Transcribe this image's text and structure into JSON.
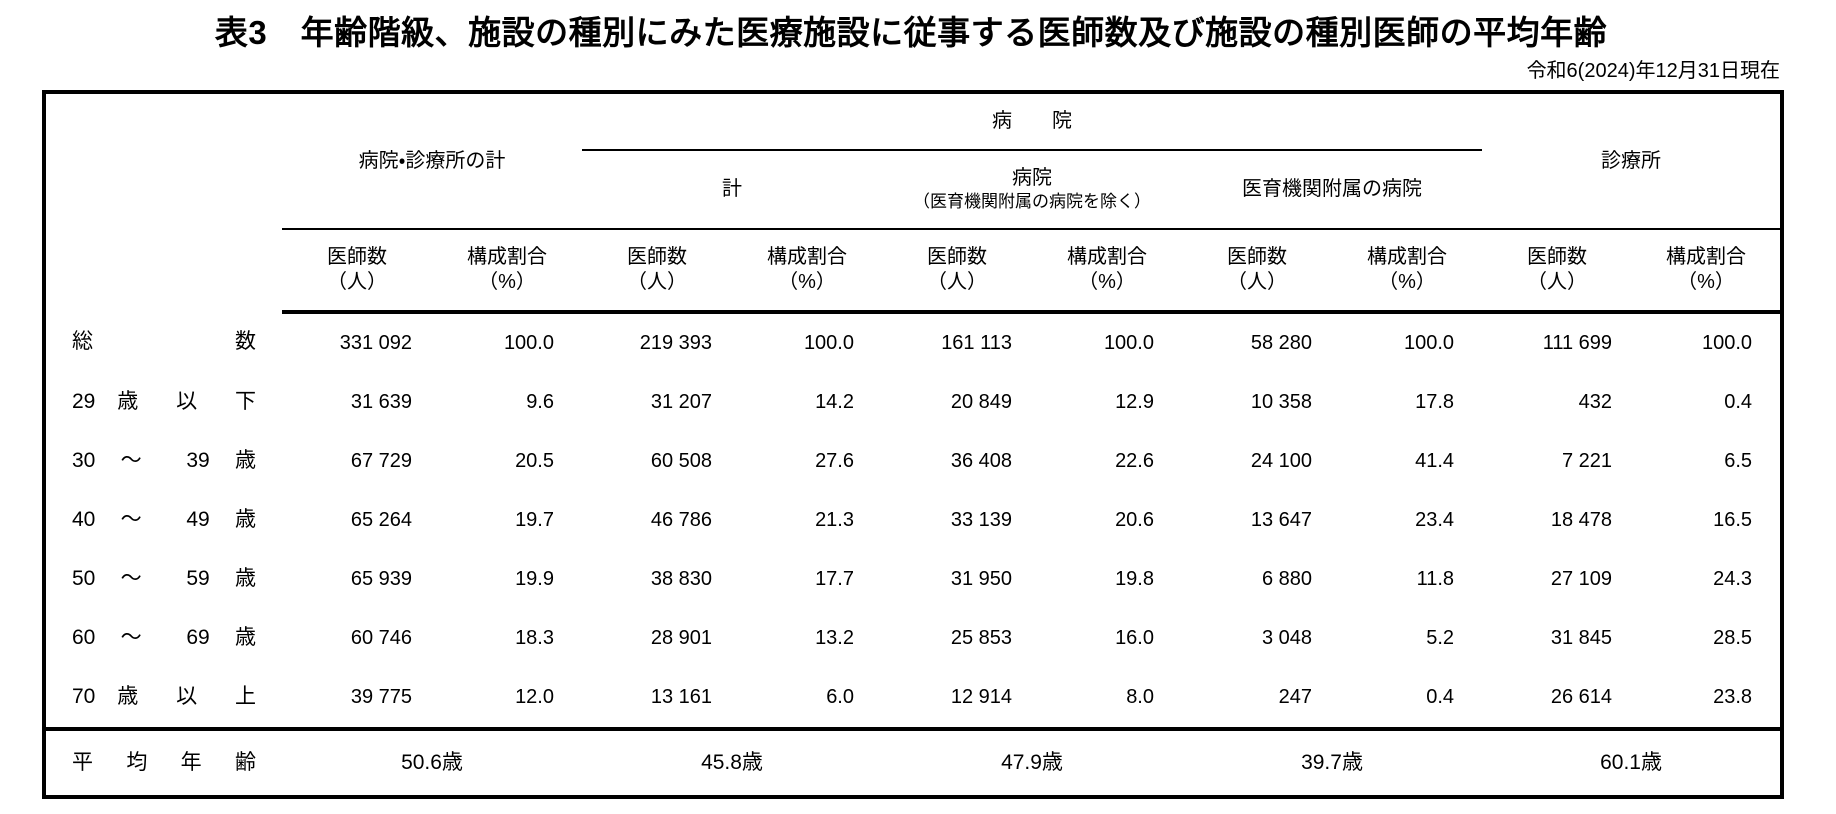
{
  "page": {
    "title": "表3　年齢階級、施設の種別にみた医療施設に従事する医師数及び施設の種別医師の平均年齢",
    "as_of": "令和6(2024)年12月31日現在"
  },
  "header": {
    "hospital_clinic_total": "病院・診療所の計",
    "hospital_group": "病　　院",
    "hospital_total": "計",
    "hospital_excl_line1": "病院",
    "hospital_excl_line2": "（医育機関附属の病院を除く）",
    "medschool_hospital": "医育機関附属の病院",
    "clinic": "診療所",
    "count_line1": "医師数",
    "count_line2": "（人）",
    "share_line1": "構成割合",
    "share_line2": "（%）"
  },
  "rows": [
    {
      "label": "総 数",
      "values": [
        "331 092",
        "100.0",
        "219 393",
        "100.0",
        "161 113",
        "100.0",
        "58 280",
        "100.0",
        "111 699",
        "100.0"
      ]
    },
    {
      "label": "29 歳 以 下",
      "values": [
        "31 639",
        "9.6",
        "31 207",
        "14.2",
        "20 849",
        "12.9",
        "10 358",
        "17.8",
        "432",
        "0.4"
      ]
    },
    {
      "label": "30 〜 39 歳",
      "values": [
        "67 729",
        "20.5",
        "60 508",
        "27.6",
        "36 408",
        "22.6",
        "24 100",
        "41.4",
        "7 221",
        "6.5"
      ]
    },
    {
      "label": "40 〜 49 歳",
      "values": [
        "65 264",
        "19.7",
        "46 786",
        "21.3",
        "33 139",
        "20.6",
        "13 647",
        "23.4",
        "18 478",
        "16.5"
      ]
    },
    {
      "label": "50 〜 59 歳",
      "values": [
        "65 939",
        "19.9",
        "38 830",
        "17.7",
        "31 950",
        "19.8",
        "6 880",
        "11.8",
        "27 109",
        "24.3"
      ]
    },
    {
      "label": "60 〜 69 歳",
      "values": [
        "60 746",
        "18.3",
        "28 901",
        "13.2",
        "25 853",
        "16.0",
        "3 048",
        "5.2",
        "31 845",
        "28.5"
      ]
    },
    {
      "label": "70 歳 以 上",
      "values": [
        "39 775",
        "12.0",
        "13 161",
        "6.0",
        "12 914",
        "8.0",
        "247",
        "0.4",
        "26 614",
        "23.8"
      ]
    }
  ],
  "average": {
    "label": "平 均 年 齢",
    "values": [
      "50.6歳",
      "45.8歳",
      "47.9歳",
      "39.7歳",
      "60.1歳"
    ]
  }
}
